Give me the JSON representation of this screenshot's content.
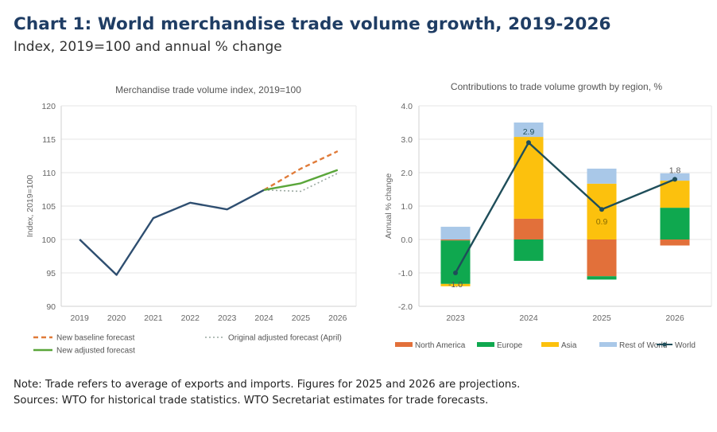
{
  "header": {
    "title": "Chart 1: World merchandise trade volume growth, 2019-2026",
    "subtitle": "Index, 2019=100 and annual % change"
  },
  "notes": {
    "note": "Note: Trade refers to average of exports and imports. Figures for 2025 and 2026 are projections.",
    "sources": "Sources: WTO for historical trade statistics. WTO Secretariat estimates for trade forecasts."
  },
  "chart_data": [
    {
      "type": "line",
      "title": "Merchandise trade volume index, 2019=100",
      "xlabel": "",
      "ylabel": "Index, 2019=100",
      "x": [
        "2019",
        "2020",
        "2021",
        "2022",
        "2023",
        "2024",
        "2025",
        "2026"
      ],
      "ylim": [
        90,
        120
      ],
      "yticks": [
        90,
        95,
        100,
        105,
        110,
        115,
        120
      ],
      "grid": true,
      "legend_position": "bottom",
      "series": [
        {
          "name": "Historical",
          "color": "#2e4e70",
          "style": "solid",
          "in_legend": false,
          "values": [
            100,
            94.7,
            103.2,
            105.5,
            104.5,
            107.4,
            null,
            null
          ]
        },
        {
          "name": "New baseline forecast",
          "color": "#e07b39",
          "style": "dashed",
          "values": [
            null,
            null,
            null,
            null,
            null,
            107.4,
            110.6,
            113.2
          ]
        },
        {
          "name": "Original adjusted forecast (April)",
          "color": "#9aa8a0",
          "style": "dotted",
          "values": [
            null,
            null,
            null,
            null,
            null,
            107.4,
            107.2,
            109.9
          ]
        },
        {
          "name": "New adjusted forecast",
          "color": "#5aa63a",
          "style": "solid",
          "values": [
            null,
            null,
            null,
            null,
            null,
            107.4,
            108.4,
            110.4
          ]
        }
      ],
      "ytick_labels": [
        "90",
        "95",
        "100",
        "105",
        "110",
        "115",
        "120"
      ]
    },
    {
      "type": "bar",
      "stacked": true,
      "title": "Contributions to trade volume growth by region, %",
      "xlabel": "",
      "ylabel": "Annual % change",
      "categories": [
        "2023",
        "2024",
        "2025",
        "2026"
      ],
      "ylim": [
        -2.0,
        4.0
      ],
      "yticks": [
        -2.0,
        -1.0,
        0.0,
        1.0,
        2.0,
        3.0,
        4.0
      ],
      "ytick_labels": [
        "-2.0",
        "-1.0",
        "0.0",
        "1.0",
        "2.0",
        "3.0",
        "4.0"
      ],
      "grid": true,
      "legend_position": "bottom",
      "series": [
        {
          "name": "North America",
          "color": "#e2703a",
          "values": [
            -0.03,
            0.62,
            -1.1,
            -0.18
          ]
        },
        {
          "name": "Europe",
          "color": "#0fa84f",
          "values": [
            -1.3,
            -0.64,
            -0.1,
            0.95
          ]
        },
        {
          "name": "Asia",
          "color": "#fcc10d",
          "values": [
            -0.07,
            2.45,
            1.67,
            0.81
          ]
        },
        {
          "name": "Rest of World",
          "color": "#a9c8e8",
          "values": [
            0.38,
            0.43,
            0.45,
            0.22
          ]
        }
      ],
      "line_series": {
        "name": "World",
        "color": "#1f4e5a",
        "values": [
          -1.0,
          2.9,
          0.9,
          1.8
        ],
        "data_labels": [
          "-1.0",
          "2.9",
          "0.9",
          "1.8"
        ]
      }
    }
  ]
}
